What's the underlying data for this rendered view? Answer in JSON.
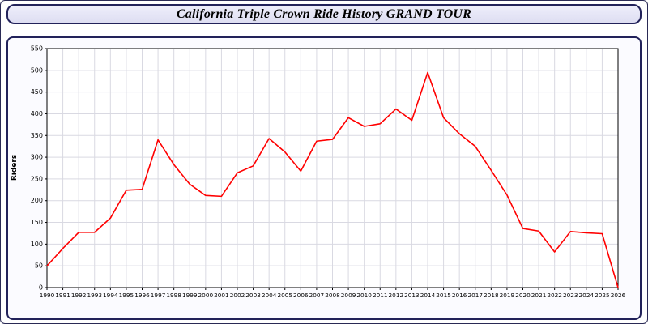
{
  "window": {
    "title": "California Triple Crown Ride History GRAND TOUR"
  },
  "chart_data": {
    "type": "line",
    "title": "California Triple Crown Ride History GRAND TOUR",
    "x": [
      1990,
      1991,
      1992,
      1993,
      1994,
      1995,
      1996,
      1997,
      1998,
      1999,
      2000,
      2001,
      2002,
      2003,
      2004,
      2005,
      2006,
      2007,
      2008,
      2009,
      2010,
      2011,
      2012,
      2013,
      2014,
      2015,
      2016,
      2017,
      2018,
      2019,
      2020,
      2021,
      2022,
      2023,
      2024,
      2025,
      2026
    ],
    "series": [
      {
        "name": "Riders",
        "values": [
          50,
          90,
          127,
          127,
          160,
          224,
          226,
          340,
          283,
          238,
          212,
          210,
          264,
          280,
          343,
          312,
          268,
          337,
          341,
          391,
          371,
          377,
          411,
          385,
          495,
          391,
          354,
          325,
          270,
          213,
          136,
          130,
          82,
          129,
          126,
          124,
          0
        ]
      }
    ],
    "xlabel": "",
    "ylabel": "Riders",
    "ylim": [
      0,
      550
    ],
    "ytick_step": 50,
    "grid": true,
    "legend_position": "none",
    "line_color": "#ff0000",
    "grid_color": "#d9d9e2",
    "axis_color": "#000000"
  }
}
